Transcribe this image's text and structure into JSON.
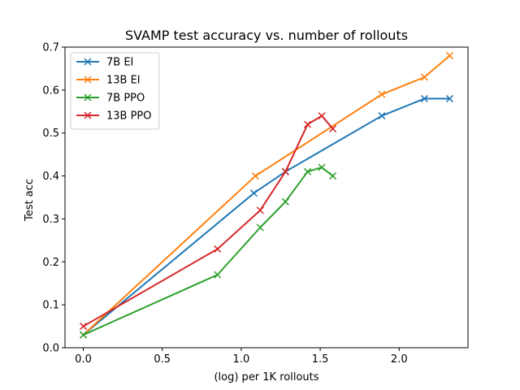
{
  "chart_data": {
    "type": "line",
    "title": "SVAMP test accuracy vs. number of rollouts",
    "xlabel": "(log) per 1K rollouts",
    "ylabel": "Test acc",
    "xlim": [
      -0.1159,
      2.4359
    ],
    "ylim": [
      0.0,
      0.7
    ],
    "xticks": [
      0.0,
      0.5,
      1.0,
      1.5,
      2.0
    ],
    "xtick_labels": [
      "0.0",
      "0.5",
      "1.0",
      "1.5",
      "2.0"
    ],
    "yticks": [
      0.0,
      0.1,
      0.2,
      0.3,
      0.4,
      0.5,
      0.6,
      0.7
    ],
    "ytick_labels": [
      "0.0",
      "0.1",
      "0.2",
      "0.3",
      "0.4",
      "0.5",
      "0.6",
      "0.7"
    ],
    "grid": false,
    "legend_position": "top-left",
    "marker": "x",
    "series": [
      {
        "name": "7B EI",
        "color": "#1f77b4",
        "x": [
          0.0,
          1.08,
          1.28,
          1.89,
          2.16,
          2.32
        ],
        "y": [
          0.03,
          0.36,
          0.41,
          0.54,
          0.58,
          0.58
        ]
      },
      {
        "name": "13B EI",
        "color": "#ff7f0e",
        "x": [
          0.0,
          1.09,
          1.89,
          2.16,
          2.32
        ],
        "y": [
          0.03,
          0.4,
          0.59,
          0.63,
          0.68
        ]
      },
      {
        "name": "7B PPO",
        "color": "#2ca02c",
        "x": [
          0.0,
          0.85,
          1.12,
          1.28,
          1.42,
          1.51,
          1.58
        ],
        "y": [
          0.03,
          0.17,
          0.28,
          0.34,
          0.41,
          0.42,
          0.4
        ]
      },
      {
        "name": "13B PPO",
        "color": "#d62728",
        "x": [
          0.0,
          0.85,
          1.12,
          1.28,
          1.42,
          1.51,
          1.58
        ],
        "y": [
          0.05,
          0.23,
          0.32,
          0.41,
          0.52,
          0.54,
          0.51
        ]
      }
    ]
  }
}
